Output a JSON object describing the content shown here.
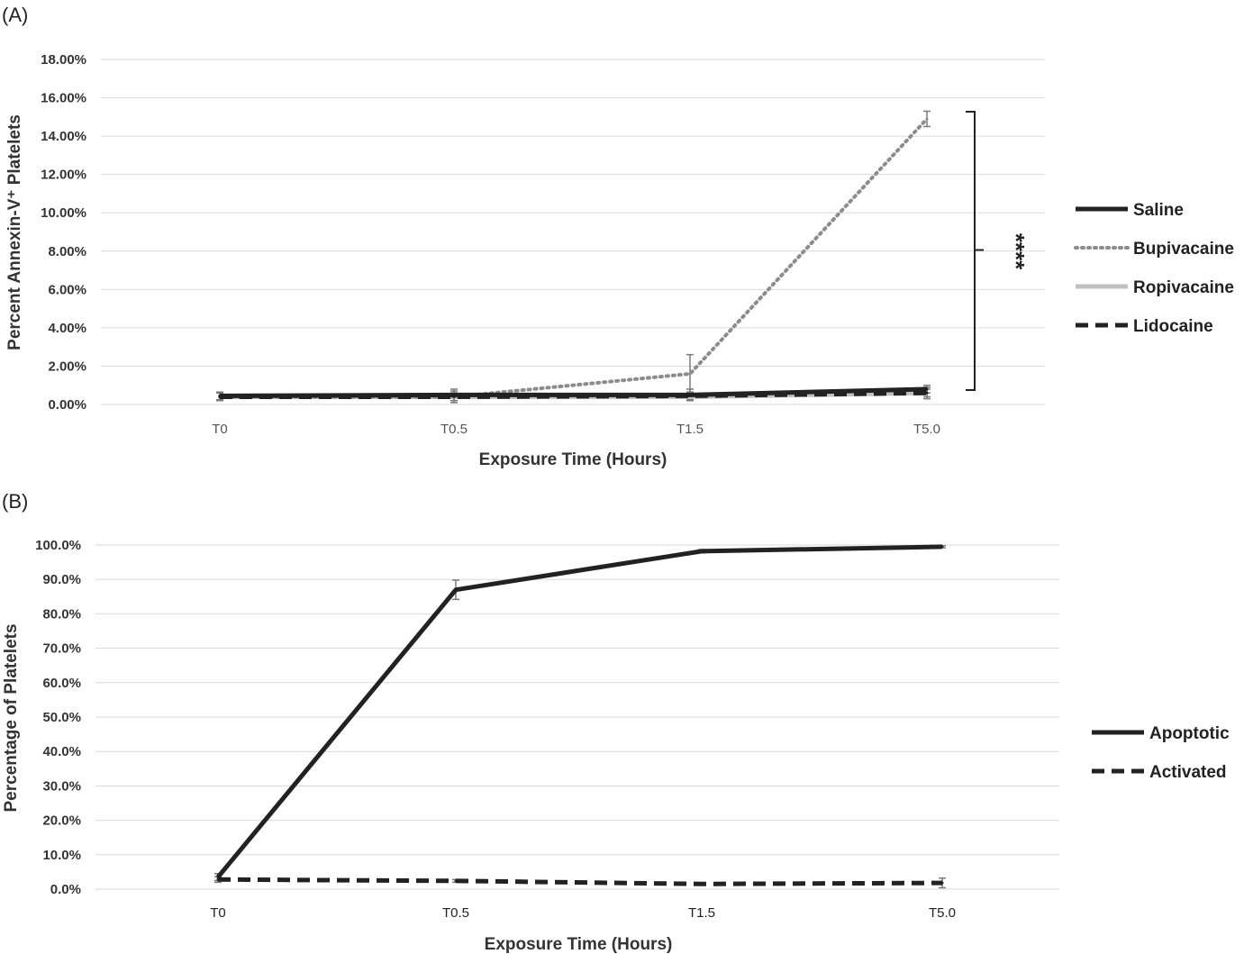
{
  "chart_data": [
    {
      "type": "line",
      "panel_label": "(A)",
      "xlabel": "Exposure Time (Hours)",
      "ylabel": "Percent Annexin-V⁺ Platelets",
      "categories": [
        "T0",
        "T0.5",
        "T1.5",
        "T5.0"
      ],
      "ylim": [
        0,
        18
      ],
      "yticks": [
        "0.00%",
        "2.00%",
        "4.00%",
        "6.00%",
        "8.00%",
        "10.00%",
        "12.00%",
        "14.00%",
        "16.00%",
        "18.00%"
      ],
      "grid": true,
      "legend_position": "right",
      "significance_label": "****",
      "series": [
        {
          "name": "Saline",
          "values": [
            0.45,
            0.5,
            0.5,
            0.8
          ],
          "errors": [
            0.2,
            0.3,
            0.3,
            0.2
          ],
          "color": "#222222",
          "style": "solid"
        },
        {
          "name": "Bupivacaine",
          "values": [
            0.4,
            0.4,
            1.6,
            14.9
          ],
          "errors": [
            0.2,
            0.3,
            1.0,
            0.4
          ],
          "color": "#8c8c8c",
          "style": "dotted"
        },
        {
          "name": "Ropivacaine",
          "values": [
            0.4,
            0.4,
            0.4,
            0.6
          ],
          "errors": [
            0.2,
            0.2,
            0.2,
            0.2
          ],
          "color": "#c0c0c0",
          "style": "solid"
        },
        {
          "name": "Lidocaine",
          "values": [
            0.4,
            0.4,
            0.45,
            0.6
          ],
          "errors": [
            0.2,
            0.2,
            0.2,
            0.3
          ],
          "color": "#222222",
          "style": "dashed"
        }
      ]
    },
    {
      "type": "line",
      "panel_label": "(B)",
      "xlabel": "Exposure Time (Hours)",
      "ylabel": "Percentage of Platelets",
      "categories": [
        "T0",
        "T0.5",
        "T1.5",
        "T5.0"
      ],
      "ylim": [
        0,
        100
      ],
      "yticks": [
        "0.0%",
        "10.0%",
        "20.0%",
        "30.0%",
        "40.0%",
        "50.0%",
        "60.0%",
        "70.0%",
        "80.0%",
        "90.0%",
        "100.0%"
      ],
      "grid": true,
      "legend_position": "right",
      "series": [
        {
          "name": "Apoptotic",
          "values": [
            3.5,
            87,
            98.2,
            99.5
          ],
          "errors": [
            1.0,
            2.8,
            0.5,
            0.3
          ],
          "color": "#222222",
          "style": "solid"
        },
        {
          "name": "Activated",
          "values": [
            2.8,
            2.4,
            1.5,
            1.8
          ],
          "errors": [
            0.8,
            0.4,
            0.3,
            1.4
          ],
          "color": "#222222",
          "style": "dashed"
        }
      ]
    }
  ]
}
